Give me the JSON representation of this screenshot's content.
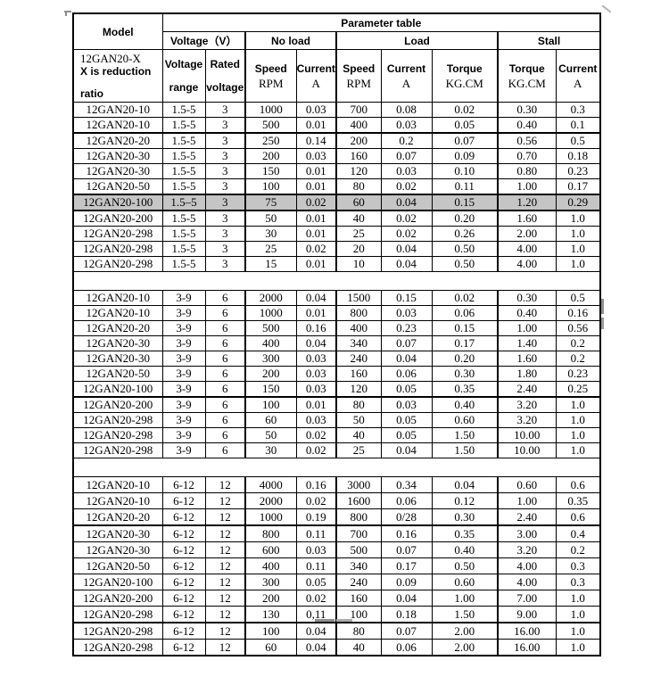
{
  "colors": {
    "border": "#000000",
    "highlight_row": "#c5c5c5",
    "artifact_gray": "#8f8f8f",
    "background": "#ffffff"
  },
  "table": {
    "title": "Parameter table",
    "header": {
      "model_label": "Model",
      "model_desc_line1": "12GAN20-X",
      "model_desc_line2": "X is reduction",
      "model_desc_line3": "ratio",
      "groups": [
        {
          "label": "Voltage（V）",
          "span": 2
        },
        {
          "label": "No load",
          "span": 2
        },
        {
          "label": "Load",
          "span": 3
        },
        {
          "label": "Stall",
          "span": 2
        }
      ],
      "columns": [
        {
          "top": "Voltage",
          "bottom": "range",
          "bottom_style": "sans"
        },
        {
          "top": "Rated",
          "bottom": "voltage",
          "bottom_style": "sans"
        },
        {
          "top": "Speed",
          "bottom": "RPM",
          "bottom_style": "serif"
        },
        {
          "top": "Current",
          "bottom": "A",
          "bottom_style": "serif"
        },
        {
          "top": "Speed",
          "bottom": "RPM",
          "bottom_style": "serif"
        },
        {
          "top": "Current",
          "bottom": "A",
          "bottom_style": "serif"
        },
        {
          "top": "Torque",
          "bottom": "KG.CM",
          "bottom_style": "serif"
        },
        {
          "top": "Torque",
          "bottom": "KG.CM",
          "bottom_style": "serif"
        },
        {
          "top": "Current",
          "bottom": "A",
          "bottom_style": "serif"
        }
      ]
    },
    "groups": [
      {
        "rows": [
          {
            "model": "12GAN20-10",
            "cells": [
              "1.5-5",
              "3",
              "1000",
              "0.03",
              "700",
              "0.08",
              "0.02",
              "0.30",
              "0.3"
            ]
          },
          {
            "model": "12GAN20-10",
            "cells": [
              "1.5-5",
              "3",
              "500",
              "0.01",
              "400",
              "0.03",
              "0.05",
              "0.40",
              "0.1"
            ],
            "thick_bottom": true
          },
          {
            "model": "12GAN20-20",
            "cells": [
              "1.5-5",
              "3",
              "250",
              "0.14",
              "200",
              "0.2",
              "0.07",
              "0.56",
              "0.5"
            ]
          },
          {
            "model": "12GAN20-30",
            "cells": [
              "1.5-5",
              "3",
              "200",
              "0.03",
              "160",
              "0.07",
              "0.09",
              "0.70",
              "0.18"
            ]
          },
          {
            "model": "12GAN20-30",
            "cells": [
              "1.5-5",
              "3",
              "150",
              "0.01",
              "120",
              "0.03",
              "0.10",
              "0.80",
              "0.23"
            ]
          },
          {
            "model": "12GAN20-50",
            "cells": [
              "1.5-5",
              "3",
              "100",
              "0.01",
              "80",
              "0.02",
              "0.11",
              "1.00",
              "0.17"
            ]
          },
          {
            "model": "12GAN20-100",
            "cells": [
              "1.5–5",
              "3",
              "75",
              "0.02",
              "60",
              "0.04",
              "0.15",
              "1.20",
              "0.29"
            ],
            "highlight": true
          },
          {
            "model": "12GAN20-200",
            "cells": [
              "1.5-5",
              "3",
              "50",
              "0.01",
              "40",
              "0.02",
              "0.20",
              "1.60",
              "1.0"
            ]
          },
          {
            "model": "12GAN20-298",
            "cells": [
              "1.5-5",
              "3",
              "30",
              "0.01",
              "25",
              "0.02",
              "0.26",
              "2.00",
              "1.0"
            ]
          },
          {
            "model": "12GAN20-298",
            "cells": [
              "1.5-5",
              "3",
              "25",
              "0.02",
              "20",
              "0.04",
              "0.50",
              "4.00",
              "1.0"
            ]
          },
          {
            "model": "12GAN20-298",
            "cells": [
              "1.5-5",
              "3",
              "15",
              "0.01",
              "10",
              "0.04",
              "0.50",
              "4.00",
              "1.0"
            ]
          }
        ]
      },
      {
        "rows": [
          {
            "model": "12GAN20-10",
            "cells": [
              "3-9",
              "6",
              "2000",
              "0.04",
              "1500",
              "0.15",
              "0.02",
              "0.30",
              "0.5"
            ]
          },
          {
            "model": "12GAN20-10",
            "cells": [
              "3-9",
              "6",
              "1000",
              "0.01",
              "800",
              "0.03",
              "0.06",
              "0.40",
              "0.16"
            ]
          },
          {
            "model": "12GAN20-20",
            "cells": [
              "3-9",
              "6",
              "500",
              "0.16",
              "400",
              "0.23",
              "0.15",
              "1.00",
              "0.56"
            ]
          },
          {
            "model": "12GAN20-30",
            "cells": [
              "3-9",
              "6",
              "400",
              "0.04",
              "340",
              "0.07",
              "0.17",
              "1.40",
              "0.2"
            ]
          },
          {
            "model": "12GAN20-30",
            "cells": [
              "3-9",
              "6",
              "300",
              "0.03",
              "240",
              "0.04",
              "0.20",
              "1.60",
              "0.2"
            ]
          },
          {
            "model": "12GAN20-50",
            "cells": [
              "3-9",
              "6",
              "200",
              "0.03",
              "160",
              "0.06",
              "0.30",
              "1.80",
              "0.23"
            ]
          },
          {
            "model": "12GAN20-100",
            "cells": [
              "3-9",
              "6",
              "150",
              "0.03",
              "120",
              "0.05",
              "0.35",
              "2.40",
              "0.25"
            ],
            "thick_bottom": true
          },
          {
            "model": "12GAN20-200",
            "cells": [
              "3-9",
              "6",
              "100",
              "0.01",
              "80",
              "0.03",
              "0.40",
              "3.20",
              "1.0"
            ]
          },
          {
            "model": "12GAN20-298",
            "cells": [
              "3-9",
              "6",
              "60",
              "0.03",
              "50",
              "0.05",
              "0.60",
              "3.20",
              "1.0"
            ]
          },
          {
            "model": "12GAN20-298",
            "cells": [
              "3-9",
              "6",
              "50",
              "0.02",
              "40",
              "0.05",
              "1.50",
              "10.00",
              "1.0"
            ]
          },
          {
            "model": "12GAN20-298",
            "cells": [
              "3-9",
              "6",
              "30",
              "0.02",
              "25",
              "0.04",
              "1.50",
              "10.00",
              "1.0"
            ]
          }
        ]
      },
      {
        "rows": [
          {
            "model": "12GAN20-10",
            "cells": [
              "6-12",
              "12",
              "4000",
              "0.16",
              "3000",
              "0.34",
              "0.04",
              "0.60",
              "0.6"
            ]
          },
          {
            "model": "12GAN20-10",
            "cells": [
              "6-12",
              "12",
              "2000",
              "0.02",
              "1600",
              "0.06",
              "0.12",
              "1.00",
              "0.35"
            ]
          },
          {
            "model": "12GAN20-20",
            "cells": [
              "6-12",
              "12",
              "1000",
              "0.19",
              "800",
              "0/28",
              "0.30",
              "2.40",
              "0.6"
            ],
            "thick_bottom": true
          },
          {
            "model": "12GAN20-30",
            "cells": [
              "6-12",
              "12",
              "800",
              "0.11",
              "700",
              "0.16",
              "0.35",
              "3.00",
              "0.4"
            ]
          },
          {
            "model": "12GAN20-30",
            "cells": [
              "6-12",
              "12",
              "600",
              "0.03",
              "500",
              "0.07",
              "0.40",
              "3.20",
              "0.2"
            ]
          },
          {
            "model": "12GAN20-50",
            "cells": [
              "6-12",
              "12",
              "400",
              "0.11",
              "340",
              "0.17",
              "0.50",
              "4.00",
              "0.3"
            ]
          },
          {
            "model": "12GAN20-100",
            "cells": [
              "6-12",
              "12",
              "300",
              "0.05",
              "240",
              "0.09",
              "0.60",
              "4.00",
              "0.3"
            ]
          },
          {
            "model": "12GAN20-200",
            "cells": [
              "6-12",
              "12",
              "200",
              "0.02",
              "160",
              "0.04",
              "1.00",
              "7.00",
              "1.0"
            ]
          },
          {
            "model": "12GAN20-298",
            "cells": [
              "6-12",
              "12",
              "130",
              "0,11",
              "100",
              "0.18",
              "1.50",
              "9.00",
              "1.0"
            ],
            "thick_bottom": true
          },
          {
            "model": "12GAN20-298",
            "cells": [
              "6-12",
              "12",
              "100",
              "0.04",
              "80",
              "0.07",
              "2.00",
              "16.00",
              "1.0"
            ]
          },
          {
            "model": "12GAN20-298",
            "cells": [
              "6-12",
              "12",
              "60",
              "0.04",
              "40",
              "0.06",
              "2.00",
              "16.00",
              "1.0"
            ]
          }
        ]
      }
    ]
  }
}
